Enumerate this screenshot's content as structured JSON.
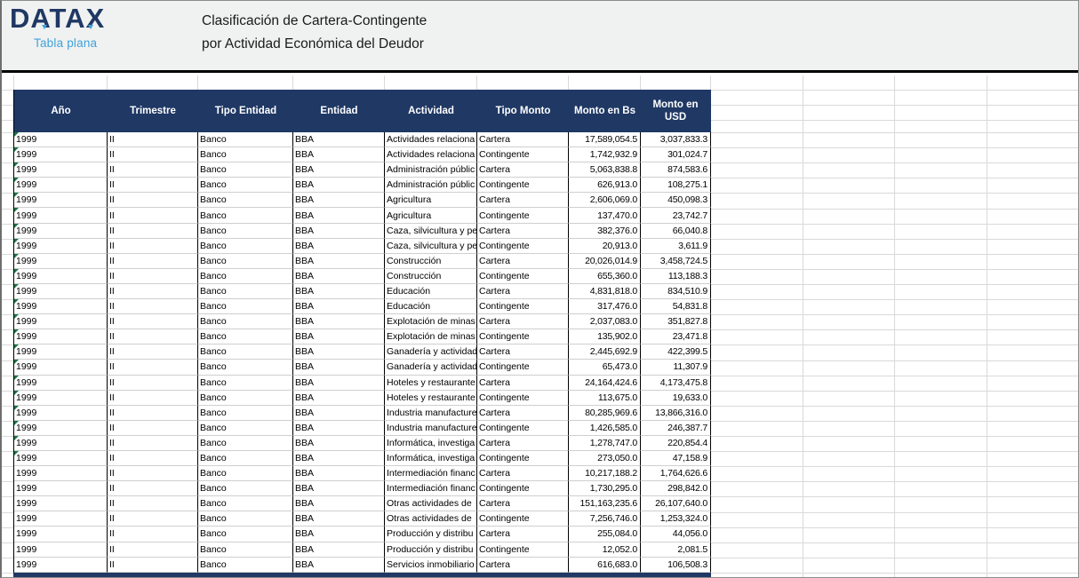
{
  "brand": {
    "logo_text": "DATAX",
    "tagline": "Tabla plana"
  },
  "title": {
    "line1": "Clasificación de Cartera-Contingente",
    "line2": "por Actividad Económica del Deudor"
  },
  "colors": {
    "header_bg": "#1f3864",
    "logo_navy": "#1f3864",
    "accent_blue": "#3fa3dc",
    "flag_green": "#1e7245",
    "gridline": "#d9d9d9"
  },
  "table": {
    "columns": [
      "Año",
      "Trimestre",
      "Tipo Entidad",
      "Entidad",
      "Actividad",
      "Tipo Monto",
      "Monto en Bs",
      "Monto en USD"
    ],
    "rows": [
      {
        "flag": true,
        "cells": [
          "1999",
          "II",
          "Banco",
          "BBA",
          "Actividades relaciona",
          "Cartera",
          "17,589,054.5",
          "3,037,833.3"
        ]
      },
      {
        "flag": true,
        "cells": [
          "1999",
          "II",
          "Banco",
          "BBA",
          "Actividades relaciona",
          "Contingente",
          "1,742,932.9",
          "301,024.7"
        ]
      },
      {
        "flag": true,
        "cells": [
          "1999",
          "II",
          "Banco",
          "BBA",
          "Administración públic",
          "Cartera",
          "5,063,838.8",
          "874,583.6"
        ]
      },
      {
        "flag": true,
        "cells": [
          "1999",
          "II",
          "Banco",
          "BBA",
          "Administración públic",
          "Contingente",
          "626,913.0",
          "108,275.1"
        ]
      },
      {
        "flag": true,
        "cells": [
          "1999",
          "II",
          "Banco",
          "BBA",
          "Agricultura",
          "Cartera",
          "2,606,069.0",
          "450,098.3"
        ]
      },
      {
        "flag": true,
        "cells": [
          "1999",
          "II",
          "Banco",
          "BBA",
          "Agricultura",
          "Contingente",
          "137,470.0",
          "23,742.7"
        ]
      },
      {
        "flag": true,
        "cells": [
          "1999",
          "II",
          "Banco",
          "BBA",
          "Caza, silvicultura y pe",
          "Cartera",
          "382,376.0",
          "66,040.8"
        ]
      },
      {
        "flag": true,
        "cells": [
          "1999",
          "II",
          "Banco",
          "BBA",
          "Caza, silvicultura y pe",
          "Contingente",
          "20,913.0",
          "3,611.9"
        ]
      },
      {
        "flag": true,
        "cells": [
          "1999",
          "II",
          "Banco",
          "BBA",
          "Construcción",
          "Cartera",
          "20,026,014.9",
          "3,458,724.5"
        ]
      },
      {
        "flag": true,
        "cells": [
          "1999",
          "II",
          "Banco",
          "BBA",
          "Construcción",
          "Contingente",
          "655,360.0",
          "113,188.3"
        ]
      },
      {
        "flag": true,
        "cells": [
          "1999",
          "II",
          "Banco",
          "BBA",
          "Educación",
          "Cartera",
          "4,831,818.0",
          "834,510.9"
        ]
      },
      {
        "flag": true,
        "cells": [
          "1999",
          "II",
          "Banco",
          "BBA",
          "Educación",
          "Contingente",
          "317,476.0",
          "54,831.8"
        ]
      },
      {
        "flag": true,
        "cells": [
          "1999",
          "II",
          "Banco",
          "BBA",
          "Explotación de minas",
          "Cartera",
          "2,037,083.0",
          "351,827.8"
        ]
      },
      {
        "flag": true,
        "cells": [
          "1999",
          "II",
          "Banco",
          "BBA",
          "Explotación de minas",
          "Contingente",
          "135,902.0",
          "23,471.8"
        ]
      },
      {
        "flag": true,
        "cells": [
          "1999",
          "II",
          "Banco",
          "BBA",
          "Ganadería y actividad",
          "Cartera",
          "2,445,692.9",
          "422,399.5"
        ]
      },
      {
        "flag": true,
        "cells": [
          "1999",
          "II",
          "Banco",
          "BBA",
          "Ganadería y actividad",
          "Contingente",
          "65,473.0",
          "11,307.9"
        ]
      },
      {
        "flag": true,
        "cells": [
          "1999",
          "II",
          "Banco",
          "BBA",
          "Hoteles y restaurante",
          "Cartera",
          "24,164,424.6",
          "4,173,475.8"
        ]
      },
      {
        "flag": true,
        "cells": [
          "1999",
          "II",
          "Banco",
          "BBA",
          "Hoteles y restaurante",
          "Contingente",
          "113,675.0",
          "19,633.0"
        ]
      },
      {
        "flag": true,
        "cells": [
          "1999",
          "II",
          "Banco",
          "BBA",
          "Industria manufacture",
          "Cartera",
          "80,285,969.6",
          "13,866,316.0"
        ]
      },
      {
        "flag": true,
        "cells": [
          "1999",
          "II",
          "Banco",
          "BBA",
          "Industria manufacture",
          "Contingente",
          "1,426,585.0",
          "246,387.7"
        ]
      },
      {
        "flag": true,
        "cells": [
          "1999",
          "II",
          "Banco",
          "BBA",
          "Informática, investiga",
          "Cartera",
          "1,278,747.0",
          "220,854.4"
        ]
      },
      {
        "flag": true,
        "cells": [
          "1999",
          "II",
          "Banco",
          "BBA",
          "Informática, investiga",
          "Contingente",
          "273,050.0",
          "47,158.9"
        ]
      },
      {
        "flag": false,
        "cells": [
          "1999",
          "II",
          "Banco",
          "BBA",
          "Intermediación financ",
          "Cartera",
          "10,217,188.2",
          "1,764,626.6"
        ]
      },
      {
        "flag": false,
        "cells": [
          "1999",
          "II",
          "Banco",
          "BBA",
          "Intermediación financ",
          "Contingente",
          "1,730,295.0",
          "298,842.0"
        ]
      },
      {
        "flag": false,
        "cells": [
          "1999",
          "II",
          "Banco",
          "BBA",
          "Otras actividades de",
          "Cartera",
          "151,163,235.6",
          "26,107,640.0"
        ]
      },
      {
        "flag": false,
        "cells": [
          "1999",
          "II",
          "Banco",
          "BBA",
          "Otras actividades de",
          "Contingente",
          "7,256,746.0",
          "1,253,324.0"
        ]
      },
      {
        "flag": false,
        "cells": [
          "1999",
          "II",
          "Banco",
          "BBA",
          "Producción y distribu",
          "Cartera",
          "255,084.0",
          "44,056.0"
        ]
      },
      {
        "flag": false,
        "cells": [
          "1999",
          "II",
          "Banco",
          "BBA",
          "Producción y distribu",
          "Contingente",
          "12,052.0",
          "2,081.5"
        ]
      },
      {
        "flag": false,
        "cells": [
          "1999",
          "II",
          "Banco",
          "BBA",
          "Servicios inmobiliario",
          "Cartera",
          "616,683.0",
          "106,508.3"
        ]
      }
    ]
  }
}
